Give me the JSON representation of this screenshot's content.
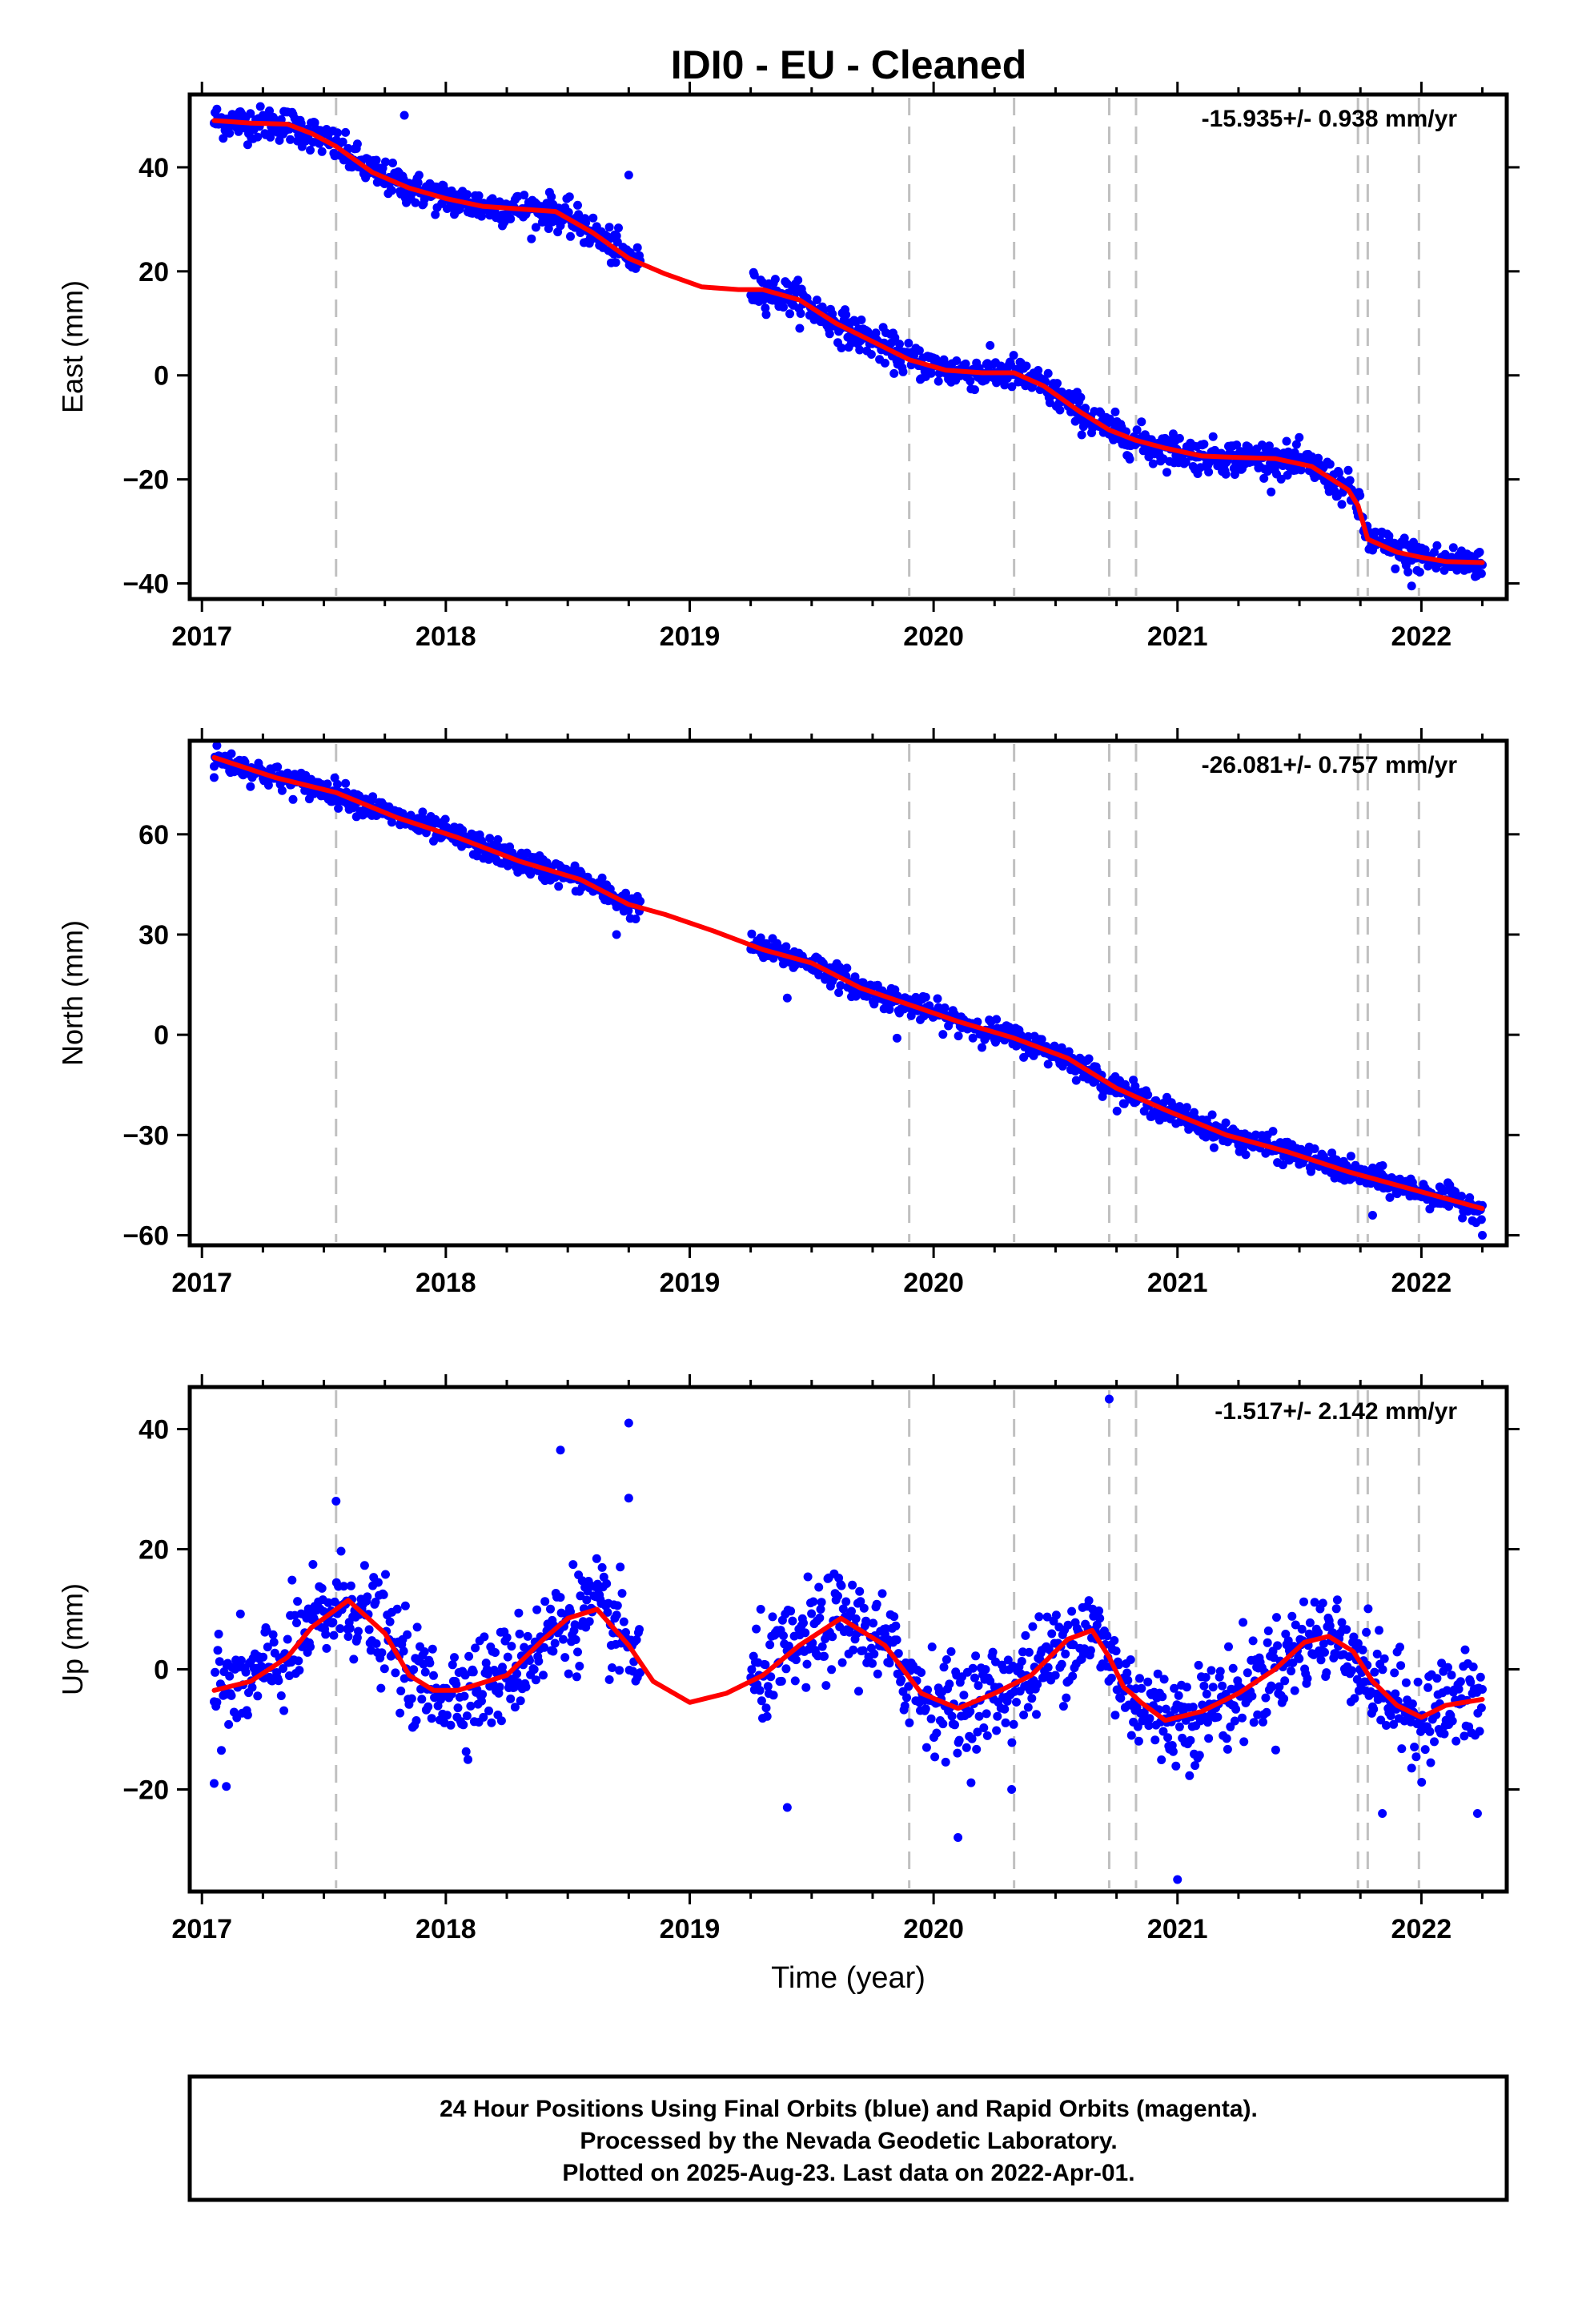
{
  "title": "IDI0  - EU - Cleaned",
  "footer": {
    "line1": "24 Hour Positions Using Final Orbits (blue) and Rapid Orbits (magenta).",
    "line2": "Processed by the Nevada Geodetic Laboratory.",
    "line3": "Plotted on 2025-Aug-23. Last data on 2022-Apr-01."
  },
  "colors": {
    "points": "#0000ff",
    "fit": "#ff0000",
    "event_lines": "#c0c0c0"
  },
  "chart_data": [
    {
      "type": "scatter",
      "ylabel": "East (mm)",
      "xlabel": "",
      "rate_label": "-15.935+/- 0.938 mm/yr",
      "xlim": [
        2016.95,
        2022.35
      ],
      "ylim": [
        -43,
        54
      ],
      "xticks": [
        2017,
        2018,
        2019,
        2020,
        2021,
        2022
      ],
      "yticks": [
        40,
        20,
        0,
        -20,
        -40
      ],
      "event_lines": [
        2017.55,
        2019.9,
        2020.33,
        2020.72,
        2020.83,
        2021.74,
        2021.78,
        2021.99
      ],
      "data_gap": [
        2018.8,
        2019.25
      ],
      "fit_x": [
        2017.05,
        2017.2,
        2017.35,
        2017.45,
        2017.55,
        2017.7,
        2017.85,
        2018.0,
        2018.15,
        2018.3,
        2018.45,
        2018.6,
        2018.75,
        2018.9,
        2019.05,
        2019.2,
        2019.3,
        2019.45,
        2019.6,
        2019.75,
        2019.9,
        2020.05,
        2020.2,
        2020.33,
        2020.45,
        2020.6,
        2020.72,
        2020.83,
        2020.95,
        2021.1,
        2021.25,
        2021.4,
        2021.55,
        2021.7,
        2021.74,
        2021.78,
        2021.9,
        2022.0,
        2022.1,
        2022.25
      ],
      "fit_y": [
        49,
        48.5,
        48.3,
        46.5,
        44,
        39,
        36,
        34,
        32.5,
        32,
        31.5,
        27.5,
        22.5,
        19.5,
        17,
        16.5,
        16.5,
        14.5,
        10,
        6.5,
        3,
        1,
        0.5,
        0.5,
        -2,
        -7,
        -10.5,
        -12.5,
        -14,
        -15.5,
        -15.8,
        -16,
        -17.5,
        -22,
        -25,
        -31.5,
        -34,
        -35,
        -35.8,
        -36
      ],
      "points": {
        "count": 1400,
        "scatter_sd": 1.6,
        "outliers": [
          [
            2017.83,
            50
          ],
          [
            2018.75,
            38.5
          ],
          [
            2020.9,
            -17
          ],
          [
            2021.96,
            -40.5
          ]
        ]
      }
    },
    {
      "type": "scatter",
      "ylabel": "North (mm)",
      "xlabel": "",
      "rate_label": "-26.081+/- 0.757 mm/yr",
      "xlim": [
        2016.95,
        2022.35
      ],
      "ylim": [
        -63,
        88
      ],
      "xticks": [
        2017,
        2018,
        2019,
        2020,
        2021,
        2022
      ],
      "yticks": [
        60,
        30,
        0,
        -30,
        -60
      ],
      "event_lines": [
        2017.55,
        2019.9,
        2020.33,
        2020.72,
        2020.83,
        2021.74,
        2021.78,
        2021.99
      ],
      "data_gap": [
        2018.8,
        2019.25
      ],
      "fit_x": [
        2017.05,
        2017.3,
        2017.55,
        2017.8,
        2018.05,
        2018.3,
        2018.55,
        2018.75,
        2018.9,
        2019.1,
        2019.3,
        2019.5,
        2019.7,
        2019.9,
        2020.1,
        2020.33,
        2020.55,
        2020.75,
        2020.95,
        2021.2,
        2021.45,
        2021.7,
        2021.95,
        2022.25
      ],
      "fit_y": [
        83,
        77,
        72.5,
        65,
        59,
        52,
        46.5,
        39,
        36,
        31,
        25.5,
        21.5,
        14,
        9,
        4,
        -1,
        -7,
        -16,
        -22.5,
        -30,
        -35,
        -41,
        -46,
        -52
      ],
      "points": {
        "count": 1400,
        "scatter_sd": 1.8,
        "outliers": [
          [
            2017.05,
            77
          ],
          [
            2018.7,
            30
          ],
          [
            2019.4,
            11
          ],
          [
            2019.85,
            -1
          ],
          [
            2021.8,
            -54
          ],
          [
            2022.25,
            -60
          ]
        ]
      }
    },
    {
      "type": "scatter",
      "ylabel": "Up (mm)",
      "xlabel": "Time (year)",
      "rate_label": "-1.517+/- 2.142 mm/yr",
      "xlim": [
        2016.95,
        2022.35
      ],
      "ylim": [
        -37,
        47
      ],
      "xticks": [
        2017,
        2018,
        2019,
        2020,
        2021,
        2022
      ],
      "yticks": [
        40,
        20,
        0,
        -20
      ],
      "event_lines": [
        2017.55,
        2019.9,
        2020.33,
        2020.72,
        2020.83,
        2021.74,
        2021.78,
        2021.99
      ],
      "data_gap": [
        2018.8,
        2019.25
      ],
      "fit_x": [
        2017.05,
        2017.2,
        2017.35,
        2017.45,
        2017.6,
        2017.75,
        2017.85,
        2017.95,
        2018.05,
        2018.25,
        2018.4,
        2018.5,
        2018.62,
        2018.75,
        2018.85,
        2019.0,
        2019.15,
        2019.3,
        2019.45,
        2019.62,
        2019.8,
        2019.95,
        2020.1,
        2020.25,
        2020.4,
        2020.55,
        2020.65,
        2020.72,
        2020.78,
        2020.81,
        2020.85,
        2020.95,
        2021.1,
        2021.25,
        2021.4,
        2021.52,
        2021.62,
        2021.72,
        2021.8,
        2021.9,
        2022.0,
        2022.1,
        2022.25
      ],
      "fit_y": [
        -3.5,
        -2,
        2,
        7,
        11.5,
        6,
        -1,
        -3.5,
        -3.5,
        -1,
        5,
        8.5,
        10,
        4,
        -2,
        -5.5,
        -4,
        -1,
        4,
        8.5,
        4,
        -4,
        -6.5,
        -4,
        -1,
        5,
        6.5,
        2,
        -3,
        -4,
        -5.5,
        -8.5,
        -7,
        -4,
        0,
        4.5,
        5.5,
        3,
        -2,
        -6,
        -8,
        -6,
        -5
      ],
      "points": {
        "count": 1400,
        "scatter_sd": 4.0,
        "outliers": [
          [
            2017.55,
            28
          ],
          [
            2018.47,
            36.5
          ],
          [
            2018.75,
            41
          ],
          [
            2018.75,
            28.5
          ],
          [
            2020.72,
            45
          ],
          [
            2020.32,
            -20
          ],
          [
            2020.1,
            -28
          ],
          [
            2021.0,
            -35
          ],
          [
            2021.84,
            -24
          ],
          [
            2022.23,
            -24
          ],
          [
            2017.05,
            -19
          ],
          [
            2017.1,
            -19.5
          ],
          [
            2019.4,
            -23
          ]
        ]
      }
    }
  ]
}
